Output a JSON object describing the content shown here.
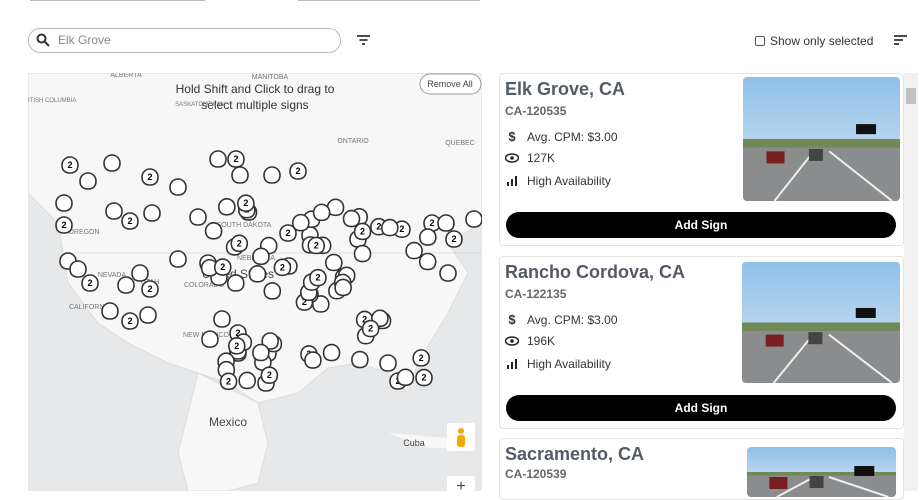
{
  "search": {
    "placeholder": "Elk Grove"
  },
  "filter_toggle": {
    "label": "Show only selected"
  },
  "map": {
    "hint": "Hold Shift and Click to drag to select multiple signs",
    "remove_button": "Remove All",
    "labels": [
      "ALBERTA",
      "MANITOBA",
      "BRITISH COLUMBIA",
      "SASKATCHEWAN",
      "ONTARIO",
      "QUEBEC",
      "OREGON",
      "SOUTH DAKOTA",
      "NEBRASKA",
      "NEVADA",
      "UTAH",
      "COLORADO",
      "CALIFORNIA",
      "NEW MEXICO",
      "United States",
      "Mexico",
      "Cuba"
    ],
    "cluster_count": "2",
    "zoom_in": "+"
  },
  "signs": [
    {
      "title": "Elk Grove, CA",
      "code": "CA-120535",
      "cpm": "Avg. CPM: $3.00",
      "impressions": "127K",
      "availability": "High Availability",
      "button": "Add Sign"
    },
    {
      "title": "Rancho Cordova, CA",
      "code": "CA-122135",
      "cpm": "Avg. CPM: $3.00",
      "impressions": "196K",
      "availability": "High Availability",
      "button": "Add Sign"
    },
    {
      "title": "Sacramento, CA",
      "code": "CA-120539"
    }
  ]
}
